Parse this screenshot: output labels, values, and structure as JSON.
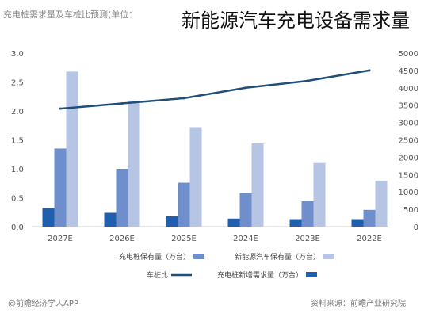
{
  "header": {
    "title": "新能源汽车充电设备需求量",
    "subtitle": "充电桩需求量及车桩比预测(单位："
  },
  "footer": {
    "left": "@前瞻经济学人APP",
    "right": "资料来源：前瞻产业研究院"
  },
  "chart_data": {
    "type": "bar",
    "categories": [
      "2027E",
      "2026E",
      "2025E",
      "2024E",
      "2023E",
      "2022E"
    ],
    "series": [
      {
        "name": "充电桩新增需求量（万台）",
        "axis": "left",
        "color": "#1f5fad",
        "values": [
          0.32,
          0.24,
          0.18,
          0.14,
          0.13,
          0.13
        ]
      },
      {
        "name": "充电桩保有量（万台）",
        "axis": "left",
        "color": "#6f8fcc",
        "values": [
          1.35,
          1.0,
          0.76,
          0.58,
          0.44,
          0.29
        ]
      },
      {
        "name": "新能源汽车保有量（万台）",
        "axis": "left",
        "color": "#b6c5e4",
        "values": [
          2.68,
          2.18,
          1.72,
          1.44,
          1.1,
          0.79
        ]
      },
      {
        "name": "车桩比",
        "axis": "right",
        "type": "line",
        "color": "#1f4e79",
        "values": [
          3400,
          3550,
          3700,
          4000,
          4200,
          4500
        ]
      }
    ],
    "left_axis": {
      "ticks": [
        "0.0",
        "0.5",
        "1.0",
        "1.5",
        "2.0",
        "2.5",
        "3.0"
      ],
      "ylim": [
        0,
        3
      ]
    },
    "right_axis": {
      "ticks": [
        "0",
        "500",
        "1000",
        "1500",
        "2000",
        "2500",
        "3000",
        "3500",
        "4000",
        "4500",
        "5000"
      ],
      "ylim": [
        0,
        5000
      ]
    },
    "grid": false,
    "legend_position": "bottom"
  }
}
